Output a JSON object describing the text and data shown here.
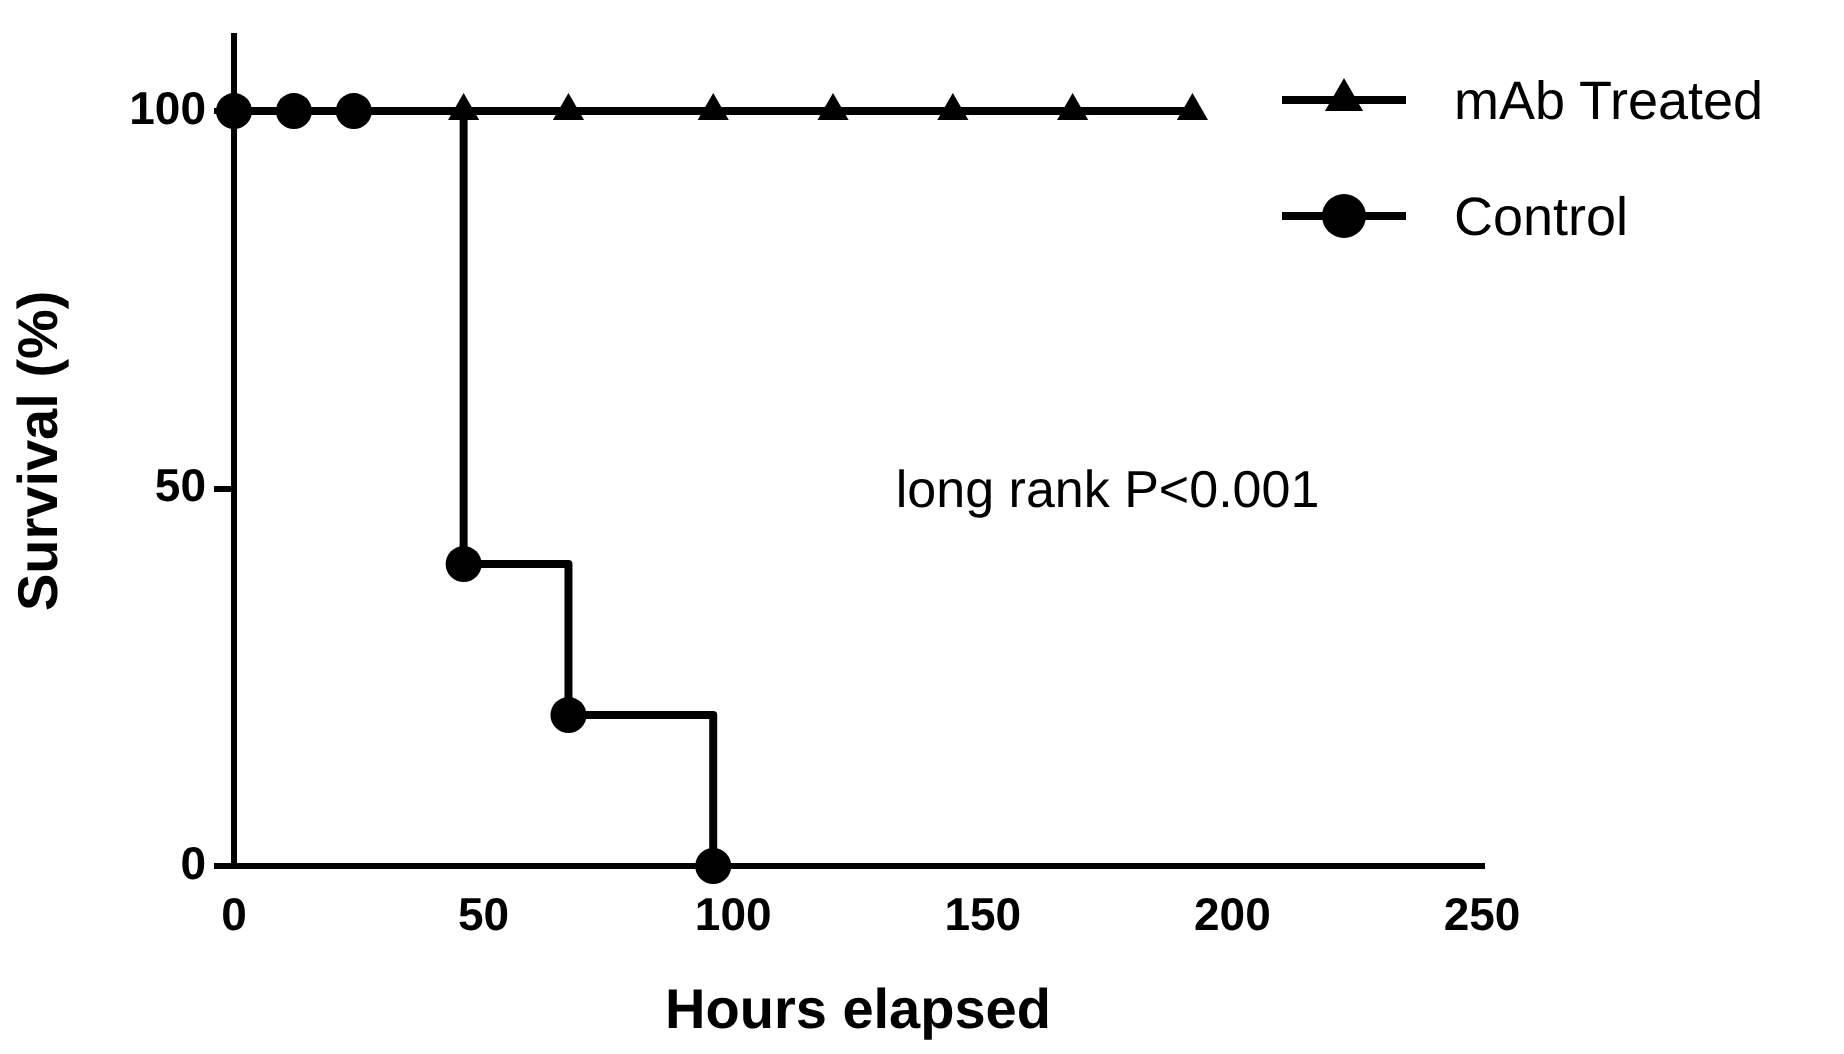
{
  "chart_data": {
    "type": "step",
    "xlabel": "Hours elapsed",
    "ylabel": "Survival (%)",
    "xlim": [
      0,
      250
    ],
    "xticks": [
      0,
      50,
      100,
      150,
      200,
      250
    ],
    "ylim": [
      0,
      110
    ],
    "yticks": [
      0,
      50,
      100
    ],
    "grid": false,
    "legend": "top right",
    "line_style": "solid",
    "annotations": [
      "long rank P<0.001"
    ],
    "series": [
      {
        "name": "mAb Treated",
        "color": "#000000",
        "marker": "triangle",
        "x": [
          0,
          12,
          24,
          46,
          67,
          96,
          120,
          144,
          168,
          192
        ],
        "values": [
          100,
          100,
          100,
          100,
          100,
          100,
          100,
          100,
          100,
          100
        ]
      },
      {
        "name": "Control",
        "color": "#000000",
        "marker": "circle",
        "x": [
          0,
          12,
          24,
          46,
          67,
          96
        ],
        "values": [
          100,
          100,
          100,
          40,
          20,
          0
        ]
      }
    ]
  }
}
